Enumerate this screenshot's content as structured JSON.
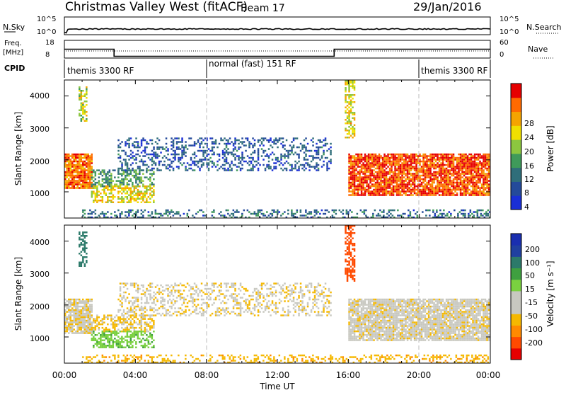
{
  "header": {
    "station": "Christmas Valley West (fitACF)",
    "beam": "Beam 17",
    "date": "29/Jan/2016"
  },
  "noise_panel": {
    "left_label": "N.Sky",
    "right_label": "N.Search",
    "left_ticks": [
      "10^5",
      "10^0"
    ],
    "right_ticks": [
      "10^5",
      "10^0"
    ]
  },
  "freq_panel": {
    "left_label_1": "Freq.",
    "left_label_2": "[MHz]",
    "right_label": "Nave",
    "left_ticks": [
      "18",
      "8"
    ],
    "right_ticks": [
      "60",
      "0"
    ]
  },
  "cpid_panel": {
    "label": "CPID",
    "modes": [
      "themis 3300 RF",
      "normal (fast) 151 RF",
      "themis 3300 RF"
    ]
  },
  "power_panel": {
    "ylabel": "Slant Range [km]",
    "yticks": [
      "4000",
      "3000",
      "2000",
      "1000"
    ],
    "colorbar_label": "Power [dB]",
    "colorbar_ticks": [
      "28",
      "24",
      "20",
      "16",
      "12",
      "8",
      "4"
    ]
  },
  "velocity_panel": {
    "ylabel": "Slant Range [km]",
    "yticks": [
      "4000",
      "3000",
      "2000",
      "1000"
    ],
    "colorbar_label": "Velocity [m s⁻¹]",
    "colorbar_ticks": [
      "200",
      "100",
      "50",
      "15",
      "-15",
      "-50",
      "-100",
      "-200"
    ]
  },
  "xaxis": {
    "ticks": [
      "00:00",
      "04:00",
      "08:00",
      "12:00",
      "16:00",
      "20:00",
      "00:00"
    ],
    "label": "Time UT"
  },
  "chart_data": {
    "type": "heatmap",
    "x_range_hours": [
      0,
      24
    ],
    "y_range_km": [
      180,
      4500
    ],
    "mode_boundaries_hours": [
      8,
      20
    ],
    "frequency_mhz_segments": [
      {
        "start": 0,
        "end": 2.8,
        "value": 13
      },
      {
        "start": 2.8,
        "end": 15.2,
        "value": 9
      },
      {
        "start": 15.2,
        "end": 24,
        "value": 13
      }
    ],
    "power_colors": [
      "#1a2fd6",
      "#244a9a",
      "#2f6e7a",
      "#3f9a5a",
      "#8cc63f",
      "#f0e000",
      "#f5a400",
      "#ff6a00",
      "#e60000"
    ],
    "velocity_colors": [
      "#e60000",
      "#ff4a00",
      "#ff8a00",
      "#f5b800",
      "#c8c8c0",
      "#c8c8c0",
      "#7ad040",
      "#3fa040",
      "#2c7a6a",
      "#2040a0",
      "#1a2fb0"
    ],
    "regions": [
      {
        "name": "strong echoes 00:00-01:30",
        "t": [
          0.0,
          1.5
        ],
        "range_km": [
          1100,
          2200
        ],
        "power_db": 26,
        "velocity": -10
      },
      {
        "name": "meteor spike 01:00",
        "t": [
          0.8,
          1.2
        ],
        "range_km": [
          3200,
          4300
        ],
        "power_db": 18,
        "velocity": 120
      },
      {
        "name": "mid echoes 02:00-05:00",
        "t": [
          1.5,
          5.0
        ],
        "range_km": [
          1200,
          1700
        ],
        "power_db": 12,
        "velocity": -20
      },
      {
        "name": "near echoes 02:00-05:00",
        "t": [
          1.5,
          5.0
        ],
        "range_km": [
          650,
          1200
        ],
        "power_db": 20,
        "velocity": 40
      },
      {
        "name": "weak band 03:00-15:00",
        "t": [
          3.0,
          15.0
        ],
        "range_km": [
          1700,
          2700
        ],
        "power_db": 6,
        "velocity": -10
      },
      {
        "name": "ground scatter 16:00-24:00",
        "t": [
          16.0,
          24.0
        ],
        "range_km": [
          900,
          2200
        ],
        "power_db": 28,
        "velocity": -5
      },
      {
        "name": "spike 16:00",
        "t": [
          15.8,
          16.3
        ],
        "range_km": [
          2700,
          4500
        ],
        "power_db": 20,
        "velocity": -150
      },
      {
        "name": "near range clutter",
        "t": [
          1.0,
          24.0
        ],
        "range_km": [
          180,
          450
        ],
        "power_db": 8,
        "velocity": -40
      }
    ]
  }
}
